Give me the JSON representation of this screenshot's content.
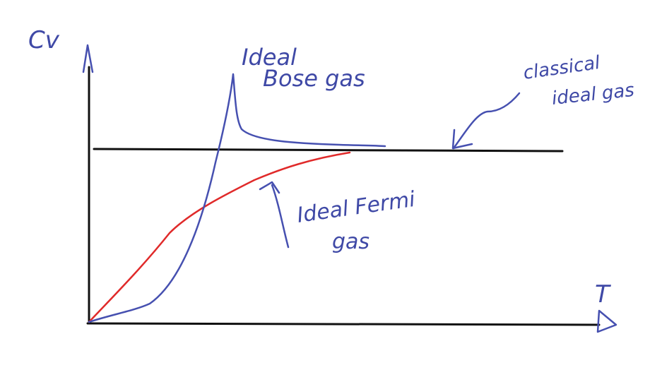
{
  "axes": {
    "y_label": "Cv",
    "x_label": "T"
  },
  "annotations": {
    "bose": [
      "Ideal",
      "Bose gas"
    ],
    "classical": [
      "classical",
      "ideal gas"
    ],
    "fermi": [
      "Ideal Fermi",
      "gas"
    ]
  },
  "colors": {
    "axes": "#111111",
    "classical_line": "#111111",
    "bose_curve": "#4650b0",
    "fermi_curve": "#e02a2a",
    "handwriting": "#3f49a6",
    "background": "#ffffff"
  }
}
